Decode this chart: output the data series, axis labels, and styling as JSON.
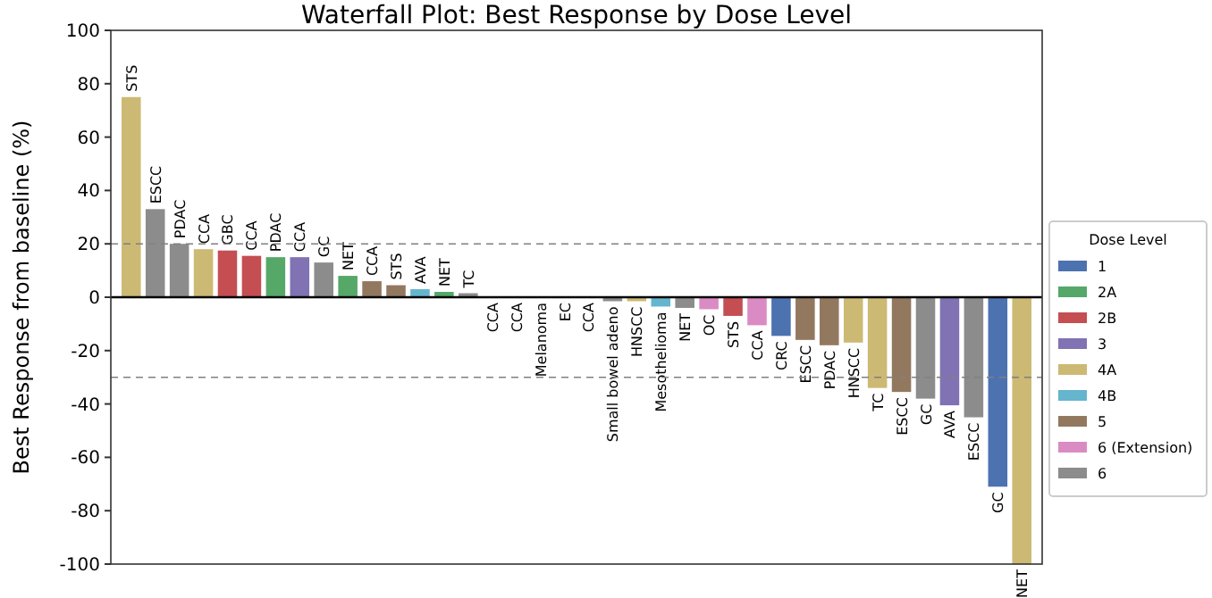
{
  "chart_data": {
    "type": "bar",
    "title": "Waterfall Plot: Best Response by Dose Level",
    "ylabel": "Best Response from baseline (%)",
    "legend_title": "Dose Level",
    "legend": "right",
    "grid": false,
    "categories": [
      "STS",
      "ESCC",
      "PDAC",
      "CCA",
      "GBC",
      "CCA",
      "PDAC",
      "CCA",
      "GC",
      "NET",
      "CCA",
      "STS",
      "AVA",
      "NET",
      "TC",
      "CCA",
      "CCA",
      "Melanoma",
      "EC",
      "CCA",
      "Small bowel adeno",
      "HNSCC",
      "Mesothelioma",
      "NET",
      "OC",
      "STS",
      "CCA",
      "CRC",
      "ESCC",
      "PDAC",
      "HNSCC",
      "TC",
      "ESCC",
      "GC",
      "AVA",
      "ESCC",
      "GC",
      "NET"
    ],
    "ylim": [
      -100,
      100
    ],
    "yticks": [
      -100,
      -80,
      -60,
      -40,
      -20,
      0,
      20,
      40,
      60,
      80,
      100
    ],
    "ref_lines": [
      {
        "axis": "y",
        "value": 20,
        "color": "#808080",
        "line_style": "dashed"
      },
      {
        "axis": "y",
        "value": -30,
        "color": "#808080",
        "line_style": "dashed"
      }
    ],
    "series": [
      {
        "name": "1",
        "color": "#4c72b0",
        "values": [
          null,
          null,
          null,
          null,
          null,
          null,
          null,
          null,
          null,
          null,
          null,
          null,
          null,
          null,
          null,
          null,
          null,
          null,
          null,
          null,
          null,
          null,
          null,
          null,
          null,
          null,
          null,
          -14.5,
          null,
          null,
          null,
          null,
          null,
          null,
          null,
          null,
          -71,
          null
        ]
      },
      {
        "name": "2A",
        "color": "#55a868",
        "values": [
          null,
          null,
          null,
          null,
          null,
          null,
          15,
          null,
          null,
          8,
          null,
          null,
          null,
          2,
          null,
          null,
          null,
          null,
          null,
          null,
          null,
          null,
          null,
          null,
          null,
          null,
          null,
          null,
          null,
          null,
          null,
          null,
          null,
          null,
          null,
          null,
          null,
          null
        ]
      },
      {
        "name": "2B",
        "color": "#c44e52",
        "values": [
          null,
          null,
          null,
          null,
          17.5,
          15.5,
          null,
          null,
          null,
          null,
          null,
          null,
          null,
          null,
          null,
          null,
          null,
          null,
          null,
          null,
          null,
          null,
          null,
          null,
          null,
          -7,
          null,
          null,
          null,
          null,
          null,
          null,
          null,
          null,
          null,
          null,
          null,
          null
        ]
      },
      {
        "name": "3",
        "color": "#8172b3",
        "values": [
          null,
          null,
          null,
          null,
          null,
          null,
          null,
          15,
          null,
          null,
          null,
          null,
          null,
          null,
          null,
          null,
          null,
          null,
          null,
          null,
          null,
          null,
          null,
          null,
          null,
          null,
          null,
          null,
          null,
          null,
          null,
          null,
          null,
          null,
          -40.5,
          null,
          null,
          null
        ]
      },
      {
        "name": "4A",
        "color": "#ccb974",
        "values": [
          75,
          null,
          null,
          18,
          null,
          null,
          null,
          null,
          null,
          null,
          null,
          null,
          null,
          null,
          null,
          null,
          null,
          null,
          null,
          null,
          null,
          -1.5,
          null,
          null,
          null,
          null,
          null,
          null,
          null,
          null,
          -17,
          -34,
          null,
          null,
          null,
          null,
          null,
          -100
        ]
      },
      {
        "name": "4B",
        "color": "#64b5cd",
        "values": [
          null,
          null,
          null,
          null,
          null,
          null,
          null,
          null,
          null,
          null,
          null,
          null,
          3,
          null,
          null,
          null,
          null,
          null,
          null,
          null,
          null,
          null,
          -3.5,
          null,
          null,
          null,
          null,
          null,
          null,
          null,
          null,
          null,
          null,
          null,
          null,
          null,
          null,
          null
        ]
      },
      {
        "name": "5",
        "color": "#937860",
        "values": [
          null,
          null,
          null,
          null,
          null,
          null,
          null,
          null,
          null,
          null,
          6,
          4.5,
          null,
          null,
          null,
          null,
          null,
          null,
          null,
          null,
          null,
          null,
          null,
          null,
          null,
          null,
          null,
          null,
          -16,
          -18,
          null,
          null,
          -35.5,
          null,
          null,
          null,
          null,
          null
        ]
      },
      {
        "name": "6 (Extension)",
        "color": "#da8bc3",
        "values": [
          null,
          null,
          null,
          null,
          null,
          null,
          null,
          null,
          null,
          null,
          null,
          null,
          null,
          null,
          null,
          null,
          null,
          null,
          null,
          null,
          null,
          null,
          null,
          null,
          -4.5,
          null,
          -10.5,
          null,
          null,
          null,
          null,
          null,
          null,
          null,
          null,
          null,
          null,
          null
        ]
      },
      {
        "name": "6",
        "color": "#8c8c8c",
        "values": [
          null,
          33,
          20,
          null,
          null,
          null,
          null,
          null,
          13,
          null,
          null,
          null,
          null,
          null,
          1.5,
          0,
          0,
          0,
          0,
          0,
          -1.5,
          null,
          null,
          -4,
          null,
          null,
          null,
          null,
          null,
          null,
          null,
          null,
          null,
          -38,
          null,
          -45,
          null,
          null
        ]
      }
    ]
  }
}
